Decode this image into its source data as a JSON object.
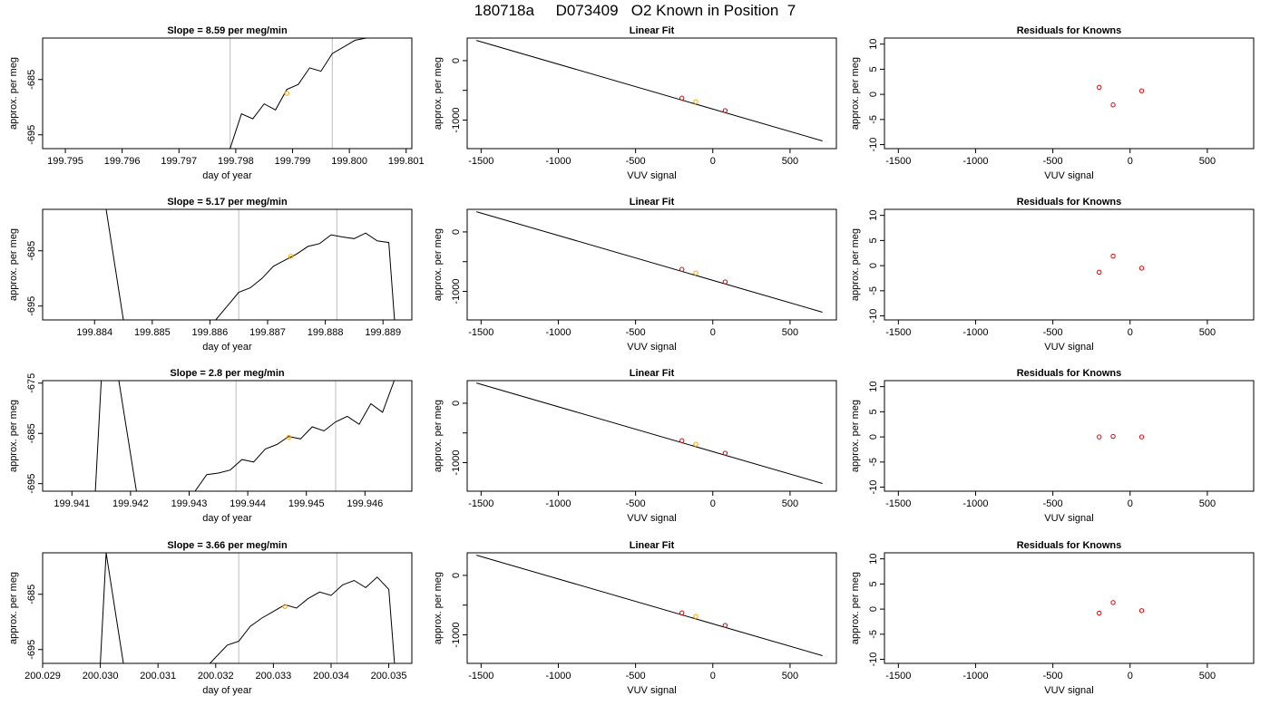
{
  "title": "180718a     D073409   O2 Known in Position  7",
  "colors": {
    "trace": "#000000",
    "marker": "#ffa500",
    "fit_point": "#e00000",
    "vline": "#c8c8c8",
    "axis": "#000000"
  },
  "chart_data": [
    {
      "type": "line",
      "panel": "time-series-1",
      "title": "Slope =  8.59  per meg/min",
      "xlabel": "day of year",
      "ylabel": "approx. per meg",
      "xlim": [
        199.7946,
        199.8011
      ],
      "ylim": [
        -697.5,
        -677.5
      ],
      "xticks": [
        199.795,
        199.796,
        199.797,
        199.798,
        199.799,
        199.8,
        199.801
      ],
      "xtick_labels": [
        "199.795",
        "199.796",
        "199.797",
        "199.798",
        "199.799",
        "199.800",
        "199.801"
      ],
      "yticks": [
        -695,
        -685
      ],
      "ytick_labels": [
        "-695",
        "-685"
      ],
      "vlines": [
        199.7979,
        199.7997
      ],
      "trace_x": [
        199.7979,
        199.7981,
        199.7983,
        199.7985,
        199.7987,
        199.7989,
        199.7991,
        199.7993,
        199.7995,
        199.7997,
        199.7999,
        199.8001,
        199.8003
      ],
      "trace_y": [
        -697.5,
        -691.2,
        -692.1,
        -689.4,
        -690.5,
        -686.8,
        -685.9,
        -682.9,
        -683.5,
        -680.3,
        -679.1,
        -677.9,
        -677.5
      ],
      "marker": {
        "x": 199.7989,
        "y": -687.5
      }
    },
    {
      "type": "scatter",
      "panel": "linear-fit-1",
      "title": "Linear Fit",
      "xlabel": "VUV signal",
      "ylabel": "approx. per meg",
      "xlim": [
        -1590,
        800
      ],
      "ylim": [
        -1480,
        380
      ],
      "xticks": [
        -1500,
        -1000,
        -500,
        0,
        500
      ],
      "xtick_labels": [
        "-1500",
        "-1000",
        "-500",
        "0",
        "500"
      ],
      "yticks": [
        0,
        -500,
        -1000
      ],
      "ytick_labels": [
        "0",
        "",
        "-1000"
      ],
      "fit_line": {
        "x": [
          -1530,
          710
        ],
        "y": [
          340,
          -1350
        ]
      },
      "points": {
        "x": [
          -200,
          80
        ],
        "y": [
          -630,
          -840
        ]
      },
      "marker": {
        "x": -110,
        "y": -690
      }
    },
    {
      "type": "scatter",
      "panel": "residuals-1",
      "title": "Residuals for Knowns",
      "xlabel": "VUV signal",
      "ylabel": "approx. per meg",
      "xlim": [
        -1590,
        800
      ],
      "ylim": [
        -10.8,
        11.2
      ],
      "xticks": [
        -1500,
        -1000,
        -500,
        0,
        500
      ],
      "xtick_labels": [
        "-1500",
        "-1000",
        "-500",
        "0",
        "500"
      ],
      "yticks": [
        -10,
        -5,
        0,
        5,
        10
      ],
      "ytick_labels": [
        "-10",
        "-5",
        "0",
        "5",
        "10"
      ],
      "points": {
        "x": [
          -200,
          -110,
          75
        ],
        "y": [
          1.4,
          -2.1,
          0.7
        ]
      }
    },
    {
      "type": "line",
      "panel": "time-series-2",
      "title": "Slope =  5.17  per meg/min",
      "xlabel": "day of year",
      "ylabel": "approx. per meg",
      "xlim": [
        199.8831,
        199.8895
      ],
      "ylim": [
        -697.5,
        -677.5
      ],
      "xticks": [
        199.884,
        199.885,
        199.886,
        199.887,
        199.888,
        199.889
      ],
      "xtick_labels": [
        "199.884",
        "199.885",
        "199.886",
        "199.887",
        "199.888",
        "199.889"
      ],
      "yticks": [
        -695,
        -685
      ],
      "ytick_labels": [
        "-695",
        "-685"
      ],
      "vlines": [
        199.8865,
        199.8882
      ],
      "trace_x": [
        199.8841,
        199.8842,
        199.8845,
        199.8861,
        199.8865,
        199.8867,
        199.8869,
        199.8871,
        199.8873,
        199.8875,
        199.8877,
        199.8879,
        199.8881,
        199.8883,
        199.8885,
        199.8887,
        199.8889,
        199.8891,
        199.8892
      ],
      "trace_y": [
        -677.5,
        -677.5,
        -697.5,
        -697.5,
        -692.5,
        -691.7,
        -690.0,
        -687.8,
        -686.7,
        -685.6,
        -684.2,
        -683.7,
        -682.1,
        -682.5,
        -682.8,
        -681.8,
        -683.2,
        -683.5,
        -697.5
      ],
      "marker": {
        "x": 199.8874,
        "y": -686.0
      }
    },
    {
      "type": "scatter",
      "panel": "linear-fit-2",
      "title": "Linear Fit",
      "xlabel": "VUV signal",
      "ylabel": "approx. per meg",
      "xlim": [
        -1590,
        800
      ],
      "ylim": [
        -1480,
        380
      ],
      "xticks": [
        -1500,
        -1000,
        -500,
        0,
        500
      ],
      "xtick_labels": [
        "-1500",
        "-1000",
        "-500",
        "0",
        "500"
      ],
      "yticks": [
        0,
        -500,
        -1000
      ],
      "ytick_labels": [
        "0",
        "",
        "-1000"
      ],
      "fit_line": {
        "x": [
          -1530,
          710
        ],
        "y": [
          340,
          -1350
        ]
      },
      "points": {
        "x": [
          -200,
          80
        ],
        "y": [
          -630,
          -840
        ]
      },
      "marker": {
        "x": -110,
        "y": -690
      }
    },
    {
      "type": "scatter",
      "panel": "residuals-2",
      "title": "Residuals for Knowns",
      "xlabel": "VUV signal",
      "ylabel": "approx. per meg",
      "xlim": [
        -1590,
        800
      ],
      "ylim": [
        -10.8,
        11.2
      ],
      "xticks": [
        -1500,
        -1000,
        -500,
        0,
        500
      ],
      "xtick_labels": [
        "-1500",
        "-1000",
        "-500",
        "0",
        "500"
      ],
      "yticks": [
        -10,
        -5,
        0,
        5,
        10
      ],
      "ytick_labels": [
        "-10",
        "-5",
        "0",
        "5",
        "10"
      ],
      "points": {
        "x": [
          -200,
          -110,
          75
        ],
        "y": [
          -1.3,
          1.9,
          -0.5
        ]
      }
    },
    {
      "type": "line",
      "panel": "time-series-3",
      "title": "Slope =  2.8  per meg/min",
      "xlabel": "day of year",
      "ylabel": "approx. per meg",
      "xlim": [
        199.9405,
        199.9468
      ],
      "ylim": [
        -696.5,
        -674.5
      ],
      "xticks": [
        199.941,
        199.942,
        199.943,
        199.944,
        199.945,
        199.946
      ],
      "xtick_labels": [
        "199.941",
        "199.942",
        "199.943",
        "199.944",
        "199.945",
        "199.946"
      ],
      "yticks": [
        -695,
        -685,
        -675
      ],
      "ytick_labels": [
        "-695",
        "-685",
        "-675"
      ],
      "vlines": [
        199.9438,
        199.9455
      ],
      "trace_x": [
        199.9414,
        199.9415,
        199.9418,
        199.9421,
        199.9431,
        199.9433,
        199.9435,
        199.9437,
        199.9439,
        199.9441,
        199.9443,
        199.9445,
        199.9447,
        199.9449,
        199.9451,
        199.9453,
        199.9455,
        199.9457,
        199.9459,
        199.9461,
        199.9463,
        199.9465
      ],
      "trace_y": [
        -696.5,
        -674.5,
        -674.5,
        -696.5,
        -696.5,
        -693.2,
        -692.9,
        -692.3,
        -690.2,
        -690.7,
        -688.1,
        -687.2,
        -685.6,
        -686.1,
        -683.7,
        -684.5,
        -682.7,
        -681.6,
        -683.2,
        -679.1,
        -680.8,
        -674.5
      ],
      "marker": {
        "x": 199.9447,
        "y": -685.8
      }
    },
    {
      "type": "scatter",
      "panel": "linear-fit-3",
      "title": "Linear Fit",
      "xlabel": "VUV signal",
      "ylabel": "approx. per meg",
      "xlim": [
        -1590,
        800
      ],
      "ylim": [
        -1480,
        380
      ],
      "xticks": [
        -1500,
        -1000,
        -500,
        0,
        500
      ],
      "xtick_labels": [
        "-1500",
        "-1000",
        "-500",
        "0",
        "500"
      ],
      "yticks": [
        0,
        -500,
        -1000
      ],
      "ytick_labels": [
        "0",
        "",
        "-1000"
      ],
      "fit_line": {
        "x": [
          -1530,
          710
        ],
        "y": [
          340,
          -1350
        ]
      },
      "points": {
        "x": [
          -200,
          80
        ],
        "y": [
          -630,
          -840
        ]
      },
      "marker": {
        "x": -110,
        "y": -690
      }
    },
    {
      "type": "scatter",
      "panel": "residuals-3",
      "title": "Residuals for Knowns",
      "xlabel": "VUV signal",
      "ylabel": "approx. per meg",
      "xlim": [
        -1590,
        800
      ],
      "ylim": [
        -10.8,
        11.2
      ],
      "xticks": [
        -1500,
        -1000,
        -500,
        0,
        500
      ],
      "xtick_labels": [
        "-1500",
        "-1000",
        "-500",
        "0",
        "500"
      ],
      "yticks": [
        -10,
        -5,
        0,
        5,
        10
      ],
      "ytick_labels": [
        "-10",
        "-5",
        "0",
        "5",
        "10"
      ],
      "points": {
        "x": [
          -200,
          -110,
          75
        ],
        "y": [
          0.0,
          0.1,
          0.0
        ]
      }
    },
    {
      "type": "line",
      "panel": "time-series-4",
      "title": "Slope =  3.66  per meg/min",
      "xlabel": "day of year",
      "ylabel": "approx. per meg",
      "xlim": [
        200.029,
        200.0354
      ],
      "ylim": [
        -697.5,
        -677.5
      ],
      "xticks": [
        200.029,
        200.03,
        200.031,
        200.032,
        200.033,
        200.034,
        200.035
      ],
      "xtick_labels": [
        "200.029",
        "200.030",
        "200.031",
        "200.032",
        "200.033",
        "200.034",
        "200.035"
      ],
      "yticks": [
        -695,
        -685
      ],
      "ytick_labels": [
        "-695",
        "-685"
      ],
      "vlines": [
        200.0324,
        200.0341
      ],
      "trace_x": [
        200.03,
        200.0301,
        200.0304,
        200.0319,
        200.0322,
        200.0324,
        200.0326,
        200.0328,
        200.033,
        200.0332,
        200.0334,
        200.0336,
        200.0338,
        200.034,
        200.0342,
        200.0344,
        200.0346,
        200.0348,
        200.035,
        200.0351
      ],
      "trace_y": [
        -697.5,
        -677.5,
        -697.5,
        -697.5,
        -694.2,
        -693.5,
        -690.8,
        -689.3,
        -688.1,
        -686.9,
        -687.5,
        -685.8,
        -684.6,
        -685.2,
        -683.3,
        -682.5,
        -683.8,
        -681.9,
        -684.1,
        -697.5
      ],
      "marker": {
        "x": 200.0332,
        "y": -687.2
      }
    },
    {
      "type": "scatter",
      "panel": "linear-fit-4",
      "title": "Linear Fit",
      "xlabel": "VUV signal",
      "ylabel": "approx. per meg",
      "xlim": [
        -1590,
        800
      ],
      "ylim": [
        -1480,
        380
      ],
      "xticks": [
        -1500,
        -1000,
        -500,
        0,
        500
      ],
      "xtick_labels": [
        "-1500",
        "-1000",
        "-500",
        "0",
        "500"
      ],
      "yticks": [
        0,
        -500,
        -1000
      ],
      "ytick_labels": [
        "0",
        "",
        "-1000"
      ],
      "fit_line": {
        "x": [
          -1530,
          710
        ],
        "y": [
          340,
          -1350
        ]
      },
      "points": {
        "x": [
          -200,
          80
        ],
        "y": [
          -630,
          -840
        ]
      },
      "marker": {
        "x": -110,
        "y": -690
      }
    },
    {
      "type": "scatter",
      "panel": "residuals-4",
      "title": "Residuals for Knowns",
      "xlabel": "VUV signal",
      "ylabel": "approx. per meg",
      "xlim": [
        -1590,
        800
      ],
      "ylim": [
        -10.8,
        11.2
      ],
      "xticks": [
        -1500,
        -1000,
        -500,
        0,
        500
      ],
      "xtick_labels": [
        "-1500",
        "-1000",
        "-500",
        "0",
        "500"
      ],
      "yticks": [
        -10,
        -5,
        0,
        5,
        10
      ],
      "ytick_labels": [
        "-10",
        "-5",
        "0",
        "5",
        "10"
      ],
      "points": {
        "x": [
          -200,
          -110,
          75
        ],
        "y": [
          -0.8,
          1.3,
          -0.3
        ]
      }
    }
  ]
}
